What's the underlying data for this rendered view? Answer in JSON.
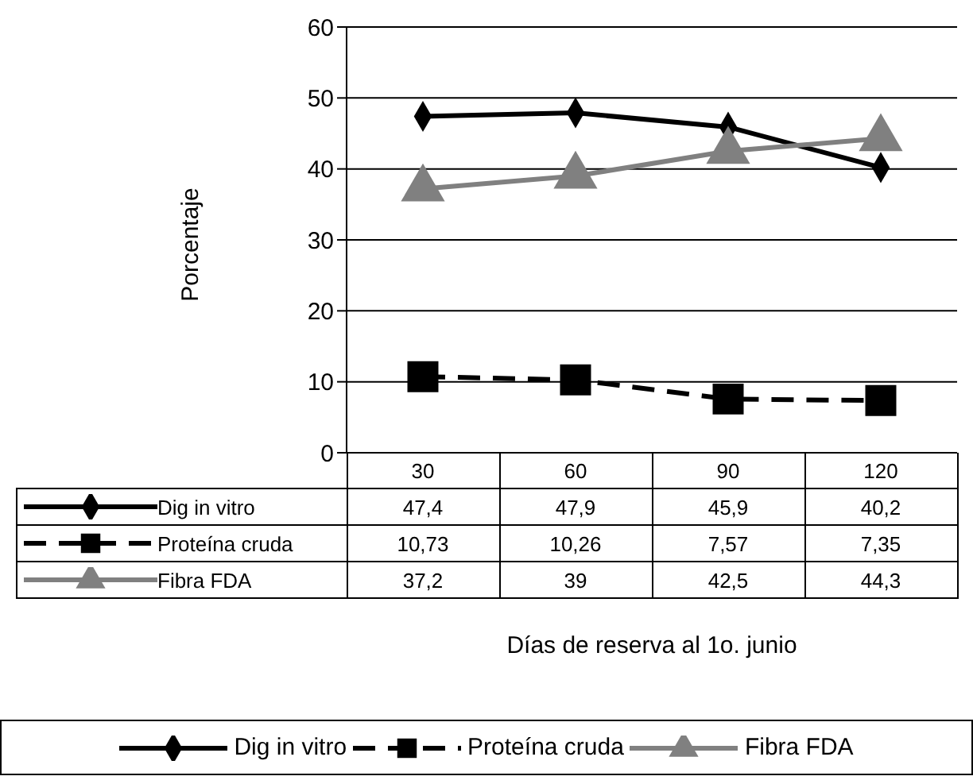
{
  "chart_data": {
    "type": "line",
    "annotations": [
      "Días de reserva al 1o. junio"
    ],
    "ylabel": "Porcentaje",
    "categories": [
      "30",
      "60",
      "90",
      "120"
    ],
    "series": [
      {
        "name": "Dig in vitro",
        "color": "#000000",
        "marker": "diamond",
        "line_style": "solid",
        "values": [
          47.4,
          47.9,
          45.9,
          40.2
        ],
        "value_labels": [
          "47,4",
          "47,9",
          "45,9",
          "40,2"
        ]
      },
      {
        "name": "Proteína cruda",
        "color": "#000000",
        "marker": "square",
        "line_style": "dashed",
        "values": [
          10.73,
          10.26,
          7.57,
          7.35
        ],
        "value_labels": [
          "10,73",
          "10,26",
          "7,57",
          "7,35"
        ]
      },
      {
        "name": "Fibra FDA",
        "color": "#808080",
        "marker": "triangle",
        "line_style": "solid",
        "values": [
          37.2,
          39,
          42.5,
          44.3
        ],
        "value_labels": [
          "37,2",
          "39",
          "42,5",
          "44,3"
        ]
      }
    ],
    "ylim": [
      0,
      60
    ],
    "yticks": [
      0,
      10,
      20,
      30,
      40,
      50,
      60
    ],
    "grid": "y",
    "legend": "bottom"
  }
}
